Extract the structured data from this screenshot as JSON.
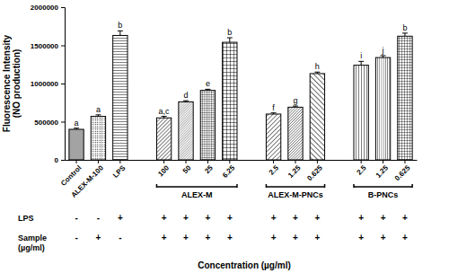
{
  "chart_data": {
    "type": "bar",
    "y_label": [
      "Fluorescence Intensity",
      "(NO production)"
    ],
    "x_label": "Concentration (µg/ml)",
    "categories": [
      "Control",
      "ALEX-M-100",
      "LPS",
      "100",
      "50",
      "25",
      "6.25",
      "2.5",
      "1.25",
      "0.625",
      "2.5",
      "1.25",
      "0.625"
    ],
    "values": [
      400000,
      570000,
      1630000,
      550000,
      760000,
      910000,
      1540000,
      600000,
      690000,
      1130000,
      1240000,
      1340000,
      1620000
    ],
    "errors": [
      15000,
      20000,
      60000,
      20000,
      15000,
      15000,
      60000,
      15000,
      15000,
      20000,
      50000,
      25000,
      40000
    ],
    "significance": [
      "a",
      "a",
      "b",
      "a,c",
      "d",
      "e",
      "b",
      "f",
      "g",
      "h",
      "i",
      "j",
      "b"
    ],
    "groups": [
      {
        "label": "ALEX-M",
        "members": [
          3,
          4,
          5,
          6
        ]
      },
      {
        "label": "ALEX-M-PNCs",
        "members": [
          7,
          8,
          9
        ]
      },
      {
        "label": "B-PNCs",
        "members": [
          10,
          11,
          12
        ]
      }
    ],
    "table_rows": [
      {
        "label": [
          "LPS"
        ],
        "signs": [
          "-",
          "-",
          "+",
          "+",
          "+",
          "+",
          "+",
          "+",
          "+",
          "+",
          "+",
          "+",
          "+"
        ]
      },
      {
        "label": [
          "Sample",
          "(µg/ml)"
        ],
        "signs": [
          "-",
          "+",
          "-",
          "+",
          "+",
          "+",
          "+",
          "+",
          "+",
          "+",
          "+",
          "+",
          "+"
        ]
      }
    ],
    "color": "#000000",
    "ylim": [
      0,
      2000000
    ],
    "yticks": [
      0,
      500000,
      1000000,
      1500000,
      2000000
    ],
    "grid": false
  }
}
